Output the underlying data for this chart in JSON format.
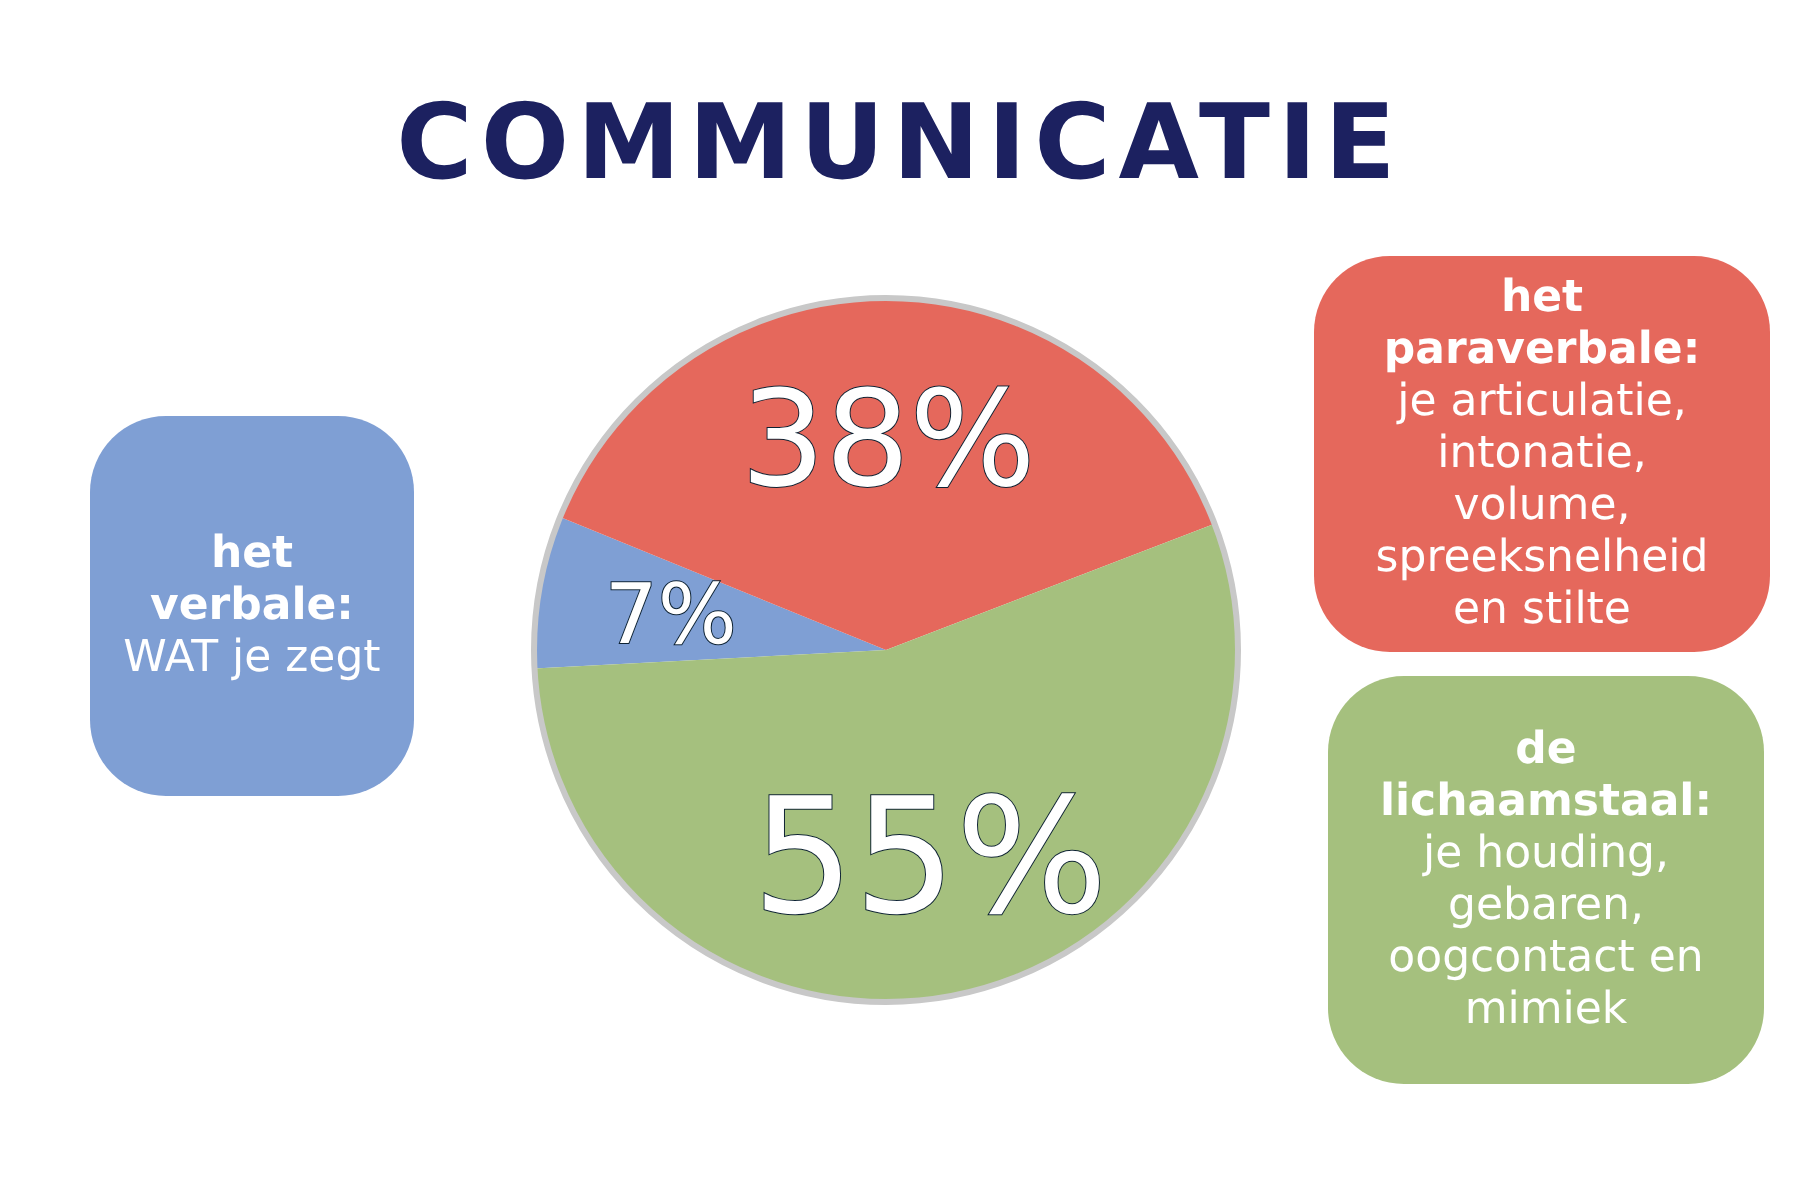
{
  "chart_data": {
    "type": "pie",
    "title": "COMMUNICATIE",
    "categories": [
      "het verbale: WAT je zegt",
      "het paraverbale: je articulatie, intonatie, volume, spreeksnelheid en stilte",
      "de lichaamstaal: je houding, gebaren, oogcontact en mimiek"
    ],
    "values": [
      7,
      38,
      55
    ],
    "colors": [
      "#7f9fd4",
      "#e5685c",
      "#a5c07e"
    ],
    "value_labels": [
      "7%",
      "38%",
      "55%"
    ]
  }
}
